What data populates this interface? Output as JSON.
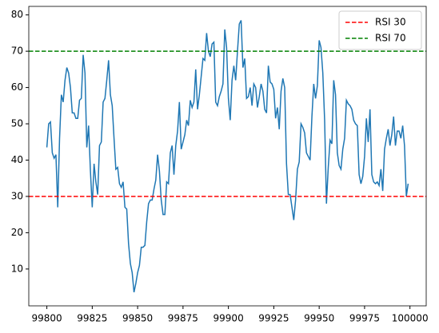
{
  "chart_data": {
    "type": "line",
    "x": [
      99800,
      99801,
      99802,
      99803,
      99804,
      99805,
      99806,
      99807,
      99808,
      99809,
      99810,
      99811,
      99812,
      99813,
      99814,
      99815,
      99816,
      99817,
      99818,
      99819,
      99820,
      99821,
      99822,
      99823,
      99824,
      99825,
      99826,
      99827,
      99828,
      99829,
      99830,
      99831,
      99832,
      99833,
      99834,
      99835,
      99836,
      99837,
      99838,
      99839,
      99840,
      99841,
      99842,
      99843,
      99844,
      99845,
      99846,
      99847,
      99848,
      99849,
      99850,
      99851,
      99852,
      99853,
      99854,
      99855,
      99856,
      99857,
      99858,
      99859,
      99860,
      99861,
      99862,
      99863,
      99864,
      99865,
      99866,
      99867,
      99868,
      99869,
      99870,
      99871,
      99872,
      99873,
      99874,
      99875,
      99876,
      99877,
      99878,
      99879,
      99880,
      99881,
      99882,
      99883,
      99884,
      99885,
      99886,
      99887,
      99888,
      99889,
      99890,
      99891,
      99892,
      99893,
      99894,
      99895,
      99896,
      99897,
      99898,
      99899,
      99900,
      99901,
      99902,
      99903,
      99904,
      99905,
      99906,
      99907,
      99908,
      99909,
      99910,
      99911,
      99912,
      99913,
      99914,
      99915,
      99916,
      99917,
      99918,
      99919,
      99920,
      99921,
      99922,
      99923,
      99924,
      99925,
      99926,
      99927,
      99928,
      99929,
      99930,
      99931,
      99932,
      99933,
      99934,
      99935,
      99936,
      99937,
      99938,
      99939,
      99940,
      99941,
      99942,
      99943,
      99944,
      99945,
      99946,
      99947,
      99948,
      99949,
      99950,
      99951,
      99952,
      99953,
      99954,
      99955,
      99956,
      99957,
      99958,
      99959,
      99960,
      99961,
      99962,
      99963,
      99964,
      99965,
      99966,
      99967,
      99968,
      99969,
      99970,
      99971,
      99972,
      99973,
      99974,
      99975,
      99976,
      99977,
      99978,
      99979,
      99980,
      99981,
      99982,
      99983,
      99984,
      99985,
      99986,
      99987,
      99988,
      99989,
      99990,
      99991,
      99992,
      99993,
      99994,
      99995,
      99996,
      99997,
      99998,
      99999
    ],
    "series": [
      {
        "color": "#1f77b4",
        "values": [
          43.5,
          50,
          50.5,
          42,
          40.5,
          41.5,
          27,
          46,
          58,
          56,
          62,
          65.5,
          64,
          60,
          53,
          53,
          51.5,
          51.5,
          56.5,
          57,
          69,
          64,
          43.5,
          49.5,
          37,
          27,
          39,
          34,
          30.5,
          44,
          45,
          56,
          57,
          62,
          67.5,
          58,
          55,
          46,
          37.5,
          38,
          33.5,
          32.5,
          34,
          27,
          26.5,
          17,
          11.5,
          9,
          3.6,
          6,
          9,
          11,
          16,
          16,
          16.5,
          23,
          28,
          29,
          29,
          32,
          34.5,
          41.5,
          37,
          29,
          25,
          25,
          34,
          33.5,
          42,
          44,
          36,
          44,
          48,
          56,
          43,
          45,
          47,
          51,
          49.5,
          56.5,
          54.5,
          56,
          65,
          54,
          58,
          63,
          68,
          67.5,
          75,
          70,
          68.5,
          72,
          72.5,
          56,
          55,
          57.5,
          59,
          61,
          76,
          71,
          57,
          51,
          62,
          66,
          62,
          70,
          77.5,
          78.5,
          65.5,
          68,
          57,
          57.5,
          60,
          55,
          61,
          60,
          54.5,
          57.5,
          61,
          59,
          54,
          53,
          66,
          61.5,
          61,
          59.5,
          51.5,
          54.5,
          48.5,
          59,
          62.5,
          60,
          39,
          30.5,
          30.5,
          27,
          23.5,
          29,
          37.5,
          39.5,
          50,
          49,
          47.5,
          42,
          41,
          40,
          52,
          61,
          57,
          60.5,
          73,
          71,
          64,
          51,
          28,
          38,
          45.5,
          44.5,
          62,
          58,
          42,
          38.5,
          37.5,
          43,
          46,
          56.5,
          55.5,
          55,
          54,
          51,
          50,
          49.5,
          36,
          33.5,
          35.5,
          41,
          51.5,
          45,
          54,
          36,
          34,
          33.5,
          34,
          33,
          37.5,
          31.5,
          43,
          46,
          48.5,
          44,
          47,
          52,
          44,
          48,
          48,
          46,
          49.5,
          44,
          30,
          33.5
        ]
      }
    ],
    "hlines": [
      {
        "name": "RSI 30",
        "value": 30,
        "color": "#ff0000"
      },
      {
        "name": "RSI 70",
        "value": 70,
        "color": "#008000"
      }
    ],
    "xlim": [
      99790.05,
      100008.95
    ],
    "xticks": [
      99800,
      99825,
      99850,
      99875,
      99900,
      99925,
      99950,
      99975,
      100000
    ],
    "ylim": [
      -0.15,
      82.35
    ],
    "yticks": [
      10,
      20,
      30,
      40,
      50,
      60,
      70,
      80
    ],
    "legend": "upper right"
  }
}
